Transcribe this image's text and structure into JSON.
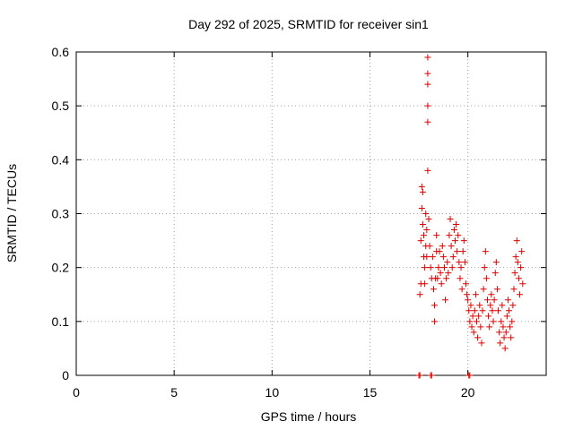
{
  "chart_data": {
    "type": "scatter",
    "title": "Day 292 of 2025, SRMTID for receiver sin1",
    "xlabel": "GPS time / hours",
    "ylabel": "SRMTID / TECUs",
    "xlim": [
      0,
      24
    ],
    "ylim": [
      0,
      0.6
    ],
    "xticks": [
      0,
      5,
      10,
      15,
      20
    ],
    "xtick_labels": [
      "0",
      "5",
      "10",
      "15",
      "20"
    ],
    "yticks": [
      0,
      0.1,
      0.2,
      0.3,
      0.4,
      0.5,
      0.6
    ],
    "ytick_labels": [
      "0",
      "0.1",
      "0.2",
      "0.3",
      "0.4",
      "0.5",
      "0.6"
    ],
    "grid": true,
    "marker": "+",
    "color": "#e00000",
    "series": [
      {
        "name": "sin1",
        "points": [
          [
            17.5,
            0.0
          ],
          [
            17.55,
            0.0
          ],
          [
            18.1,
            0.0
          ],
          [
            18.15,
            0.0
          ],
          [
            20.05,
            0.0
          ],
          [
            20.1,
            0.0
          ],
          [
            17.55,
            0.15
          ],
          [
            17.6,
            0.17
          ],
          [
            17.6,
            0.25
          ],
          [
            17.65,
            0.31
          ],
          [
            17.65,
            0.35
          ],
          [
            17.7,
            0.34
          ],
          [
            17.7,
            0.28
          ],
          [
            17.75,
            0.26
          ],
          [
            17.75,
            0.22
          ],
          [
            17.8,
            0.2
          ],
          [
            17.8,
            0.17
          ],
          [
            17.85,
            0.24
          ],
          [
            17.85,
            0.3
          ],
          [
            17.9,
            0.27
          ],
          [
            17.9,
            0.22
          ],
          [
            17.95,
            0.38
          ],
          [
            17.95,
            0.47
          ],
          [
            17.95,
            0.5
          ],
          [
            17.95,
            0.54
          ],
          [
            17.95,
            0.56
          ],
          [
            17.95,
            0.59
          ],
          [
            18.0,
            0.29
          ],
          [
            18.05,
            0.24
          ],
          [
            18.1,
            0.2
          ],
          [
            18.15,
            0.18
          ],
          [
            18.2,
            0.22
          ],
          [
            18.25,
            0.16
          ],
          [
            18.3,
            0.13
          ],
          [
            18.3,
            0.1
          ],
          [
            18.35,
            0.18
          ],
          [
            18.4,
            0.26
          ],
          [
            18.4,
            0.23
          ],
          [
            18.45,
            0.18
          ],
          [
            18.5,
            0.2
          ],
          [
            18.55,
            0.23
          ],
          [
            18.6,
            0.19
          ],
          [
            18.65,
            0.17
          ],
          [
            18.7,
            0.24
          ],
          [
            18.75,
            0.22
          ],
          [
            18.8,
            0.2
          ],
          [
            18.85,
            0.14
          ],
          [
            18.9,
            0.18
          ],
          [
            18.95,
            0.21
          ],
          [
            19.0,
            0.19
          ],
          [
            19.05,
            0.26
          ],
          [
            19.1,
            0.29
          ],
          [
            19.15,
            0.24
          ],
          [
            19.2,
            0.2
          ],
          [
            19.25,
            0.22
          ],
          [
            19.3,
            0.27
          ],
          [
            19.35,
            0.25
          ],
          [
            19.4,
            0.28
          ],
          [
            19.45,
            0.23
          ],
          [
            19.5,
            0.26
          ],
          [
            19.55,
            0.21
          ],
          [
            19.6,
            0.18
          ],
          [
            19.65,
            0.2
          ],
          [
            19.7,
            0.16
          ],
          [
            19.75,
            0.23
          ],
          [
            19.8,
            0.25
          ],
          [
            19.85,
            0.21
          ],
          [
            19.9,
            0.17
          ],
          [
            19.95,
            0.15
          ],
          [
            20.0,
            0.14
          ],
          [
            20.05,
            0.12
          ],
          [
            20.1,
            0.1
          ],
          [
            20.15,
            0.13
          ],
          [
            20.2,
            0.09
          ],
          [
            20.25,
            0.11
          ],
          [
            20.3,
            0.08
          ],
          [
            20.35,
            0.12
          ],
          [
            20.4,
            0.15
          ],
          [
            20.45,
            0.1
          ],
          [
            20.5,
            0.07
          ],
          [
            20.55,
            0.11
          ],
          [
            20.6,
            0.13
          ],
          [
            20.65,
            0.09
          ],
          [
            20.7,
            0.06
          ],
          [
            20.75,
            0.12
          ],
          [
            20.8,
            0.16
          ],
          [
            20.85,
            0.2
          ],
          [
            20.9,
            0.23
          ],
          [
            20.95,
            0.18
          ],
          [
            21.0,
            0.14
          ],
          [
            21.05,
            0.11
          ],
          [
            21.1,
            0.09
          ],
          [
            21.15,
            0.13
          ],
          [
            21.2,
            0.15
          ],
          [
            21.25,
            0.12
          ],
          [
            21.3,
            0.1
          ],
          [
            21.35,
            0.14
          ],
          [
            21.4,
            0.19
          ],
          [
            21.45,
            0.21
          ],
          [
            21.5,
            0.16
          ],
          [
            21.55,
            0.12
          ],
          [
            21.6,
            0.08
          ],
          [
            21.65,
            0.06
          ],
          [
            21.7,
            0.1
          ],
          [
            21.75,
            0.13
          ],
          [
            21.8,
            0.09
          ],
          [
            21.85,
            0.07
          ],
          [
            21.9,
            0.05
          ],
          [
            21.95,
            0.08
          ],
          [
            22.0,
            0.11
          ],
          [
            22.05,
            0.14
          ],
          [
            22.1,
            0.12
          ],
          [
            22.15,
            0.09
          ],
          [
            22.2,
            0.07
          ],
          [
            22.25,
            0.1
          ],
          [
            22.3,
            0.13
          ],
          [
            22.35,
            0.16
          ],
          [
            22.4,
            0.19
          ],
          [
            22.45,
            0.22
          ],
          [
            22.5,
            0.25
          ],
          [
            22.55,
            0.21
          ],
          [
            22.6,
            0.18
          ],
          [
            22.65,
            0.15
          ],
          [
            22.7,
            0.2
          ],
          [
            22.75,
            0.23
          ],
          [
            22.8,
            0.17
          ]
        ]
      }
    ]
  }
}
